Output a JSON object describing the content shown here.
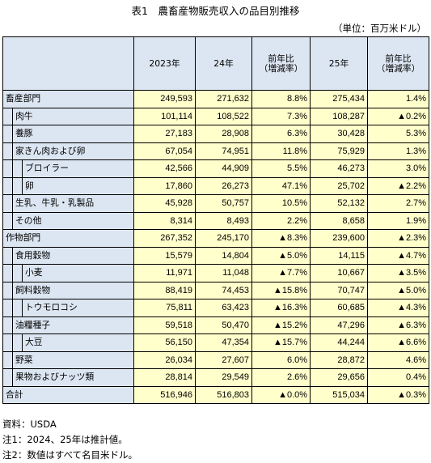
{
  "title": "表1　農畜産物販売収入の品目別推移",
  "unit": "（単位：百万米ドル）",
  "header": {
    "col_2023": "2023年",
    "col_24": "24年",
    "growth_line1": "前年比",
    "growth_line2": "（増減率）",
    "col_25": "25年",
    "growth2_line1": "前年比",
    "growth2_line2": "（増減率）"
  },
  "rows": [
    {
      "label": "畜産部門",
      "v2023": "249,593",
      "v24": "271,632",
      "g24": "8.8%",
      "v25": "275,434",
      "g25": "1.4%"
    },
    {
      "label": "肉牛",
      "v2023": "101,114",
      "v24": "108,522",
      "g24": "7.3%",
      "v25": "108,287",
      "g25": "▲0.2%"
    },
    {
      "label": "養豚",
      "v2023": "27,183",
      "v24": "28,908",
      "g24": "6.3%",
      "v25": "30,428",
      "g25": "5.3%"
    },
    {
      "label": "家きん肉および卵",
      "v2023": "67,054",
      "v24": "74,951",
      "g24": "11.8%",
      "v25": "75,929",
      "g25": "1.3%"
    },
    {
      "label": "ブロイラー",
      "v2023": "42,566",
      "v24": "44,909",
      "g24": "5.5%",
      "v25": "46,273",
      "g25": "3.0%"
    },
    {
      "label": "卵",
      "v2023": "17,860",
      "v24": "26,273",
      "g24": "47.1%",
      "v25": "25,702",
      "g25": "▲2.2%"
    },
    {
      "label": "生乳、牛乳・乳製品",
      "v2023": "45,928",
      "v24": "50,757",
      "g24": "10.5%",
      "v25": "52,132",
      "g25": "2.7%"
    },
    {
      "label": "その他",
      "v2023": "8,314",
      "v24": "8,493",
      "g24": "2.2%",
      "v25": "8,658",
      "g25": "1.9%"
    },
    {
      "label": "作物部門",
      "v2023": "267,352",
      "v24": "245,170",
      "g24": "▲8.3%",
      "v25": "239,600",
      "g25": "▲2.3%"
    },
    {
      "label": "食用穀物",
      "v2023": "15,579",
      "v24": "14,804",
      "g24": "▲5.0%",
      "v25": "14,115",
      "g25": "▲4.7%"
    },
    {
      "label": "小麦",
      "v2023": "11,971",
      "v24": "11,048",
      "g24": "▲7.7%",
      "v25": "10,667",
      "g25": "▲3.5%"
    },
    {
      "label": "飼料穀物",
      "v2023": "88,419",
      "v24": "74,453",
      "g24": "▲15.8%",
      "v25": "70,747",
      "g25": "▲5.0%"
    },
    {
      "label": "トウモロコシ",
      "v2023": "75,811",
      "v24": "63,423",
      "g24": "▲16.3%",
      "v25": "60,685",
      "g25": "▲4.3%"
    },
    {
      "label": "油糧種子",
      "v2023": "59,518",
      "v24": "50,470",
      "g24": "▲15.2%",
      "v25": "47,296",
      "g25": "▲6.3%"
    },
    {
      "label": "大豆",
      "v2023": "56,150",
      "v24": "47,354",
      "g24": "▲15.7%",
      "v25": "44,244",
      "g25": "▲6.6%"
    },
    {
      "label": "野菜",
      "v2023": "26,034",
      "v24": "27,607",
      "g24": "6.0%",
      "v25": "28,872",
      "g25": "4.6%"
    },
    {
      "label": "果物およびナッツ類",
      "v2023": "28,814",
      "v24": "29,549",
      "g24": "2.6%",
      "v25": "29,656",
      "g25": "0.4%"
    },
    {
      "label": "合計",
      "v2023": "516,946",
      "v24": "516,803",
      "g24": "▲0.0%",
      "v25": "515,034",
      "g25": "▲0.3%"
    }
  ],
  "notes": {
    "source": "資料：USDA",
    "note1": "注1：2024、25年は推計値。",
    "note2": "注2：数値はすべて名目米ドル。"
  }
}
